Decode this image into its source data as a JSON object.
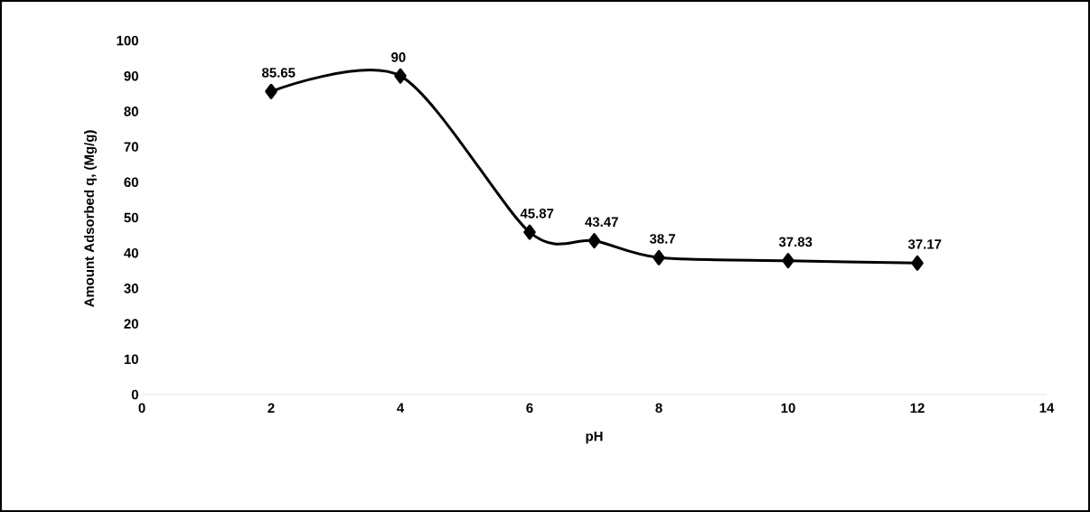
{
  "chart_data": {
    "type": "line",
    "xlabel": "pH",
    "ylabel": "Amount Adsorbed q, (Mg/g)",
    "x": [
      2,
      4,
      6,
      7,
      8,
      10,
      12
    ],
    "series": [
      {
        "color": "#000000",
        "values": [
          85.65,
          90,
          45.87,
          43.47,
          38.7,
          37.83,
          37.17
        ]
      }
    ],
    "xlim": [
      0,
      14
    ],
    "xticks": [
      0,
      2,
      4,
      6,
      8,
      10,
      12,
      14
    ],
    "ylim": [
      0,
      100
    ],
    "yticks": [
      0,
      10,
      20,
      30,
      40,
      50,
      60,
      70,
      80,
      90,
      100
    ],
    "grid": false,
    "marker": "diamond",
    "line_style": "solid",
    "data_labels": true
  }
}
